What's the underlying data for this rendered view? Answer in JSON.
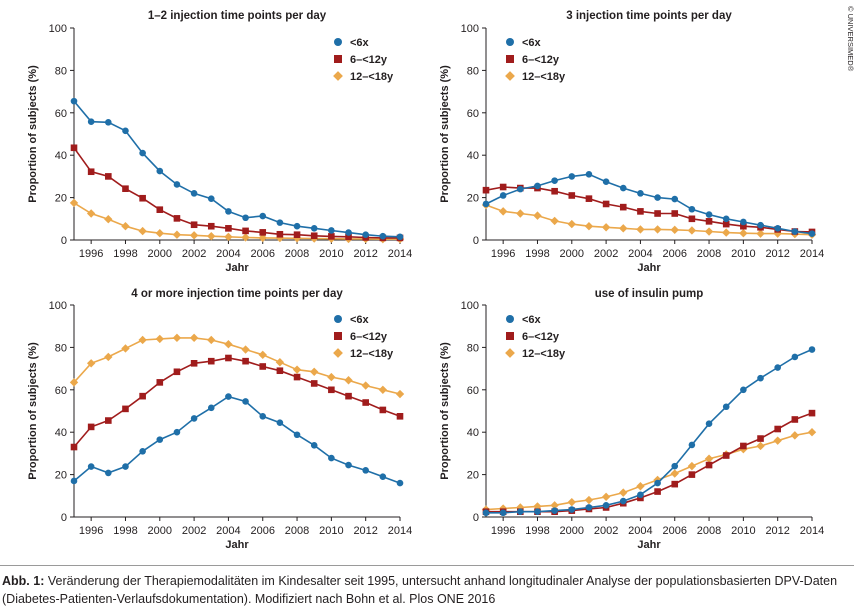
{
  "copyright": "© UNIVERSIMED®",
  "caption": {
    "label": "Abb. 1:",
    "text": "Veränderung der Therapiemodalitäten im Kindesalter seit 1995, untersucht anhand longitudinaler Analyse der populationsbasierten DPV-Daten (Diabetes-Patienten-Verlaufsdokumentation). Modifiziert nach Bohn et al. Plos ONE 2016"
  },
  "colors": {
    "lt6": "#1f6fa8",
    "six12": "#a01c1c",
    "twelve18": "#eba84b"
  },
  "chart_data": [
    {
      "type": "line",
      "title": "1–2 injection time points per day",
      "xlabel": "Jahr",
      "ylabel": "Proportion of subjects (%)",
      "xlim": [
        1995,
        2014
      ],
      "ylim": [
        0,
        100
      ],
      "yticks": [
        0,
        20,
        40,
        60,
        80,
        100
      ],
      "xticks": [
        1996,
        1998,
        2000,
        2002,
        2004,
        2006,
        2008,
        2010,
        2012,
        2014
      ],
      "legend": "top-right",
      "x": [
        1995,
        1996,
        1997,
        1998,
        1999,
        2000,
        2001,
        2002,
        2003,
        2004,
        2005,
        2006,
        2007,
        2008,
        2009,
        2010,
        2011,
        2012,
        2013,
        2014
      ],
      "series": [
        {
          "name": "<6x",
          "marker": "circle",
          "color": "#1f6fa8",
          "values": [
            65.5,
            55.8,
            55.5,
            51.5,
            41,
            32.5,
            26.2,
            22,
            19.5,
            13.5,
            10.5,
            11.3,
            8.2,
            6.5,
            5.5,
            4.5,
            3.5,
            2.5,
            1.8,
            1.5
          ]
        },
        {
          "name": "6–<12y",
          "marker": "square",
          "color": "#a01c1c",
          "values": [
            43.5,
            32.2,
            30,
            24.2,
            19.7,
            14.3,
            10.2,
            7.2,
            6.5,
            5.5,
            4.3,
            3.6,
            2.7,
            2.5,
            2,
            1.7,
            1.5,
            1.2,
            1,
            1
          ]
        },
        {
          "name": "12–<18y",
          "marker": "diamond",
          "color": "#eba84b",
          "values": [
            17.5,
            12.5,
            9.8,
            6.5,
            4.2,
            3.2,
            2.5,
            2.2,
            1.8,
            1.5,
            1.2,
            1,
            0.9,
            0.8,
            0.7,
            0.6,
            0.5,
            0.5,
            0.4,
            0.4
          ]
        }
      ]
    },
    {
      "type": "line",
      "title": "3 injection time points per day",
      "xlabel": "Jahr",
      "ylabel": "Proportion of subjects (%)",
      "xlim": [
        1995,
        2014
      ],
      "ylim": [
        0,
        100
      ],
      "yticks": [
        0,
        20,
        40,
        60,
        80,
        100
      ],
      "xticks": [
        1996,
        1998,
        2000,
        2002,
        2004,
        2006,
        2008,
        2010,
        2012,
        2014
      ],
      "legend": "top-right",
      "x": [
        1995,
        1996,
        1997,
        1998,
        1999,
        2000,
        2001,
        2002,
        2003,
        2004,
        2005,
        2006,
        2007,
        2008,
        2009,
        2010,
        2011,
        2012,
        2013,
        2014
      ],
      "series": [
        {
          "name": "<6x",
          "marker": "circle",
          "color": "#1f6fa8",
          "values": [
            17,
            21,
            24,
            25.5,
            28,
            30,
            31,
            27.5,
            24.5,
            22,
            20,
            19.3,
            14.5,
            12,
            10,
            8.5,
            7,
            5.5,
            4,
            3
          ]
        },
        {
          "name": "6–<12y",
          "marker": "square",
          "color": "#a01c1c",
          "values": [
            23.5,
            25,
            24.5,
            24.5,
            23,
            21,
            19.5,
            17,
            15.5,
            13.5,
            12.5,
            12.5,
            10,
            8.8,
            7.5,
            6.5,
            6,
            5,
            4,
            3.8
          ]
        },
        {
          "name": "12–<18y",
          "marker": "diamond",
          "color": "#eba84b",
          "values": [
            16.5,
            13.5,
            12.5,
            11.5,
            9,
            7.5,
            6.5,
            6,
            5.5,
            5,
            5,
            4.8,
            4.5,
            4,
            3.5,
            3.2,
            3,
            3,
            2.8,
            2.5
          ]
        }
      ]
    },
    {
      "type": "line",
      "title": "4 or more injection time points per day",
      "xlabel": "Jahr",
      "ylabel": "Proportion of subjects (%)",
      "xlim": [
        1995,
        2014
      ],
      "ylim": [
        0,
        100
      ],
      "yticks": [
        0,
        20,
        40,
        60,
        80,
        100
      ],
      "xticks": [
        1996,
        1998,
        2000,
        2002,
        2004,
        2006,
        2008,
        2010,
        2012,
        2014
      ],
      "legend": "top-right",
      "x": [
        1995,
        1996,
        1997,
        1998,
        1999,
        2000,
        2001,
        2002,
        2003,
        2004,
        2005,
        2006,
        2007,
        2008,
        2009,
        2010,
        2011,
        2012,
        2013,
        2014
      ],
      "series": [
        {
          "name": "<6x",
          "marker": "circle",
          "color": "#1f6fa8",
          "values": [
            17,
            23.8,
            20.8,
            23.8,
            31,
            36.5,
            40,
            46.5,
            51.5,
            56.8,
            54.5,
            47.5,
            44.5,
            38.8,
            33.8,
            27.8,
            24.5,
            22,
            19,
            16
          ]
        },
        {
          "name": "6–<12y",
          "marker": "square",
          "color": "#a01c1c",
          "values": [
            33,
            42.5,
            45.5,
            51,
            57,
            63.5,
            68.5,
            72.5,
            73.5,
            75,
            73.5,
            71,
            69,
            66,
            63,
            60,
            57,
            54,
            50.5,
            47.5
          ]
        },
        {
          "name": "12–<18y",
          "marker": "diamond",
          "color": "#eba84b",
          "values": [
            63.5,
            72.5,
            75.5,
            79.5,
            83.5,
            84,
            84.5,
            84.5,
            83.5,
            81.5,
            79,
            76.5,
            73,
            69.5,
            68.5,
            66,
            64.5,
            62,
            60,
            58
          ]
        }
      ]
    },
    {
      "type": "line",
      "title": "use of insulin pump",
      "xlabel": "Jahr",
      "ylabel": "Proportion of subjects (%)",
      "xlim": [
        1995,
        2014
      ],
      "ylim": [
        0,
        100
      ],
      "yticks": [
        0,
        20,
        40,
        60,
        80,
        100
      ],
      "xticks": [
        1996,
        1998,
        2000,
        2002,
        2004,
        2006,
        2008,
        2010,
        2012,
        2014
      ],
      "legend": "top-left",
      "x": [
        1995,
        1996,
        1997,
        1998,
        1999,
        2000,
        2001,
        2002,
        2003,
        2004,
        2005,
        2006,
        2007,
        2008,
        2009,
        2010,
        2011,
        2012,
        2013,
        2014
      ],
      "series": [
        {
          "name": "<6x",
          "marker": "circle",
          "color": "#1f6fa8",
          "values": [
            2,
            2,
            2.5,
            2.5,
            3,
            3.5,
            4.5,
            5.5,
            7.5,
            10.5,
            16,
            24,
            34,
            44,
            52,
            60,
            65.5,
            70.5,
            75.5,
            79
          ]
        },
        {
          "name": "6–<12y",
          "marker": "square",
          "color": "#a01c1c",
          "values": [
            2.5,
            2.5,
            2.5,
            2.5,
            2.5,
            3,
            3.8,
            4.5,
            6.5,
            9,
            12,
            15.5,
            20,
            24.5,
            29,
            33.5,
            37,
            41.5,
            46,
            49
          ]
        },
        {
          "name": "12–<18y",
          "marker": "diamond",
          "color": "#eba84b",
          "values": [
            3.5,
            4,
            4.5,
            5,
            5.5,
            7,
            8,
            9.5,
            11.5,
            14.5,
            17.5,
            20.5,
            24,
            27.5,
            29.5,
            32,
            33.5,
            36,
            38.5,
            40
          ]
        }
      ]
    }
  ]
}
